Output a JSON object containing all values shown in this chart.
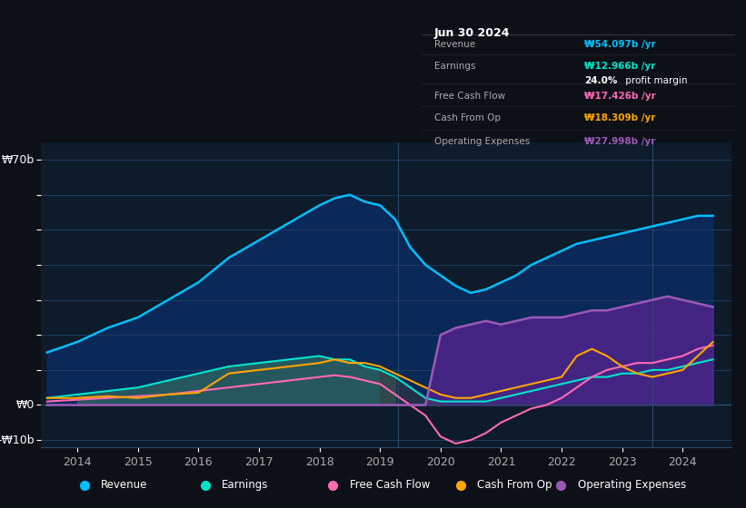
{
  "bg_color": "#0d1117",
  "plot_bg_color": "#0d1b2a",
  "grid_color": "#1e3a5f",
  "title_box_bg": "#000000",
  "title_date": "Jun 30 2024",
  "info_rows": [
    {
      "label": "Revenue",
      "value": "₩54.097b /yr",
      "color": "#00bfff"
    },
    {
      "label": "Earnings",
      "value": "₩12.966b /yr",
      "color": "#00e5cc"
    },
    {
      "label": "",
      "value": "24.0% profit margin",
      "color": "#ffffff",
      "bold_part": "24.0%"
    },
    {
      "label": "Free Cash Flow",
      "value": "₩17.426b /yr",
      "color": "#ff69b4"
    },
    {
      "label": "Cash From Op",
      "value": "₩18.309b /yr",
      "color": "#ffa500"
    },
    {
      "label": "Operating Expenses",
      "value": "₩27.998b /yr",
      "color": "#9b59b6"
    }
  ],
  "ylabel_top": "₩70b",
  "ylabel_zero": "₩0",
  "ylabel_neg": "-₩10b",
  "ylim": [
    -12,
    75
  ],
  "yticks": [
    -10,
    0,
    10,
    20,
    30,
    40,
    50,
    60,
    70
  ],
  "colors": {
    "revenue": "#00bfff",
    "earnings": "#00e5cc",
    "fcf": "#ff69b4",
    "cashfromop": "#ffa500",
    "opex": "#9b59b6"
  },
  "legend_items": [
    {
      "label": "Revenue",
      "color": "#00bfff"
    },
    {
      "label": "Earnings",
      "color": "#00e5cc"
    },
    {
      "label": "Free Cash Flow",
      "color": "#ff69b4"
    },
    {
      "label": "Cash From Op",
      "color": "#ffa500"
    },
    {
      "label": "Operating Expenses",
      "color": "#9b59b6"
    }
  ],
  "shade_region1": [
    2014.0,
    2019.3
  ],
  "shade_region2": [
    2019.3,
    2024.5
  ],
  "years": [
    2013.5,
    2014,
    2014.5,
    2015,
    2015.5,
    2016,
    2016.5,
    2017,
    2017.5,
    2018,
    2018.25,
    2018.5,
    2018.75,
    2019,
    2019.25,
    2019.5,
    2019.75,
    2020,
    2020.25,
    2020.5,
    2020.75,
    2021,
    2021.25,
    2021.5,
    2021.75,
    2022,
    2022.25,
    2022.5,
    2022.75,
    2023,
    2023.25,
    2023.5,
    2023.75,
    2024,
    2024.25,
    2024.5
  ],
  "revenue": [
    15,
    18,
    22,
    25,
    30,
    35,
    42,
    47,
    52,
    57,
    59,
    60,
    58,
    57,
    53,
    45,
    40,
    37,
    34,
    32,
    33,
    35,
    37,
    40,
    42,
    44,
    46,
    47,
    48,
    49,
    50,
    51,
    52,
    53,
    54,
    54
  ],
  "earnings": [
    2,
    3,
    4,
    5,
    7,
    9,
    11,
    12,
    13,
    14,
    13,
    13,
    11,
    10,
    8,
    5,
    2,
    1,
    1,
    1,
    1,
    2,
    3,
    4,
    5,
    6,
    7,
    8,
    8,
    9,
    9,
    10,
    10,
    11,
    12,
    13
  ],
  "fcf": [
    1,
    1.5,
    2,
    2.5,
    3,
    4,
    5,
    6,
    7,
    8,
    8.5,
    8,
    7,
    6,
    3,
    0,
    -3,
    -9,
    -11,
    -10,
    -8,
    -5,
    -3,
    -1,
    0,
    2,
    5,
    8,
    10,
    11,
    12,
    12,
    13,
    14,
    16,
    17
  ],
  "cashfromop": [
    2,
    2,
    2.5,
    2,
    3,
    3.5,
    9,
    10,
    11,
    12,
    13,
    12,
    12,
    11,
    9,
    7,
    5,
    3,
    2,
    2,
    3,
    4,
    5,
    6,
    7,
    8,
    14,
    16,
    14,
    11,
    9,
    8,
    9,
    10,
    14,
    18
  ],
  "opex": [
    0,
    0,
    0,
    0,
    0,
    0,
    0,
    0,
    0,
    0,
    0,
    0,
    0,
    0,
    0,
    0,
    0,
    20,
    22,
    23,
    24,
    23,
    24,
    25,
    25,
    25,
    26,
    27,
    27,
    28,
    29,
    30,
    31,
    30,
    29,
    28
  ]
}
